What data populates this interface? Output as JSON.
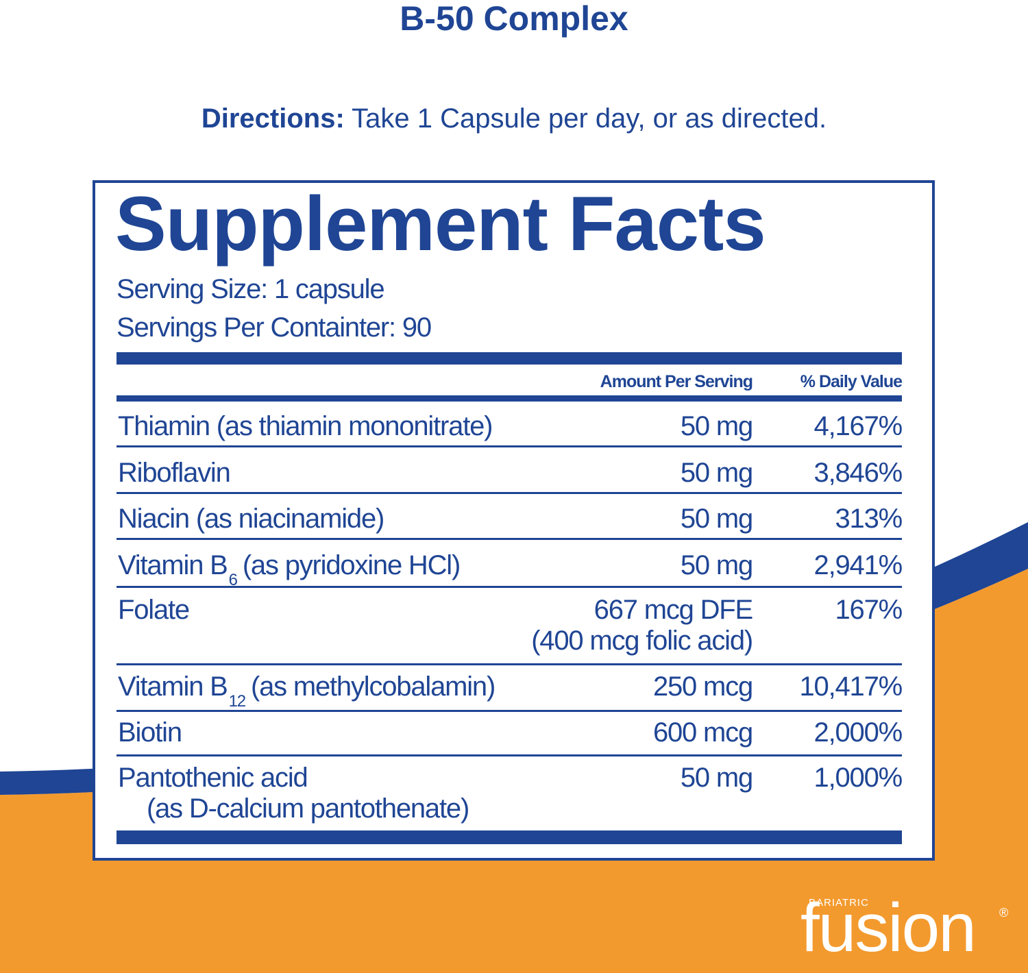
{
  "header": {
    "title": "B-50 Complex",
    "directions_label": "Directions:",
    "directions_text": "Take 1 Capsule per day, or as directed."
  },
  "facts": {
    "title": "Supplement Facts",
    "serving_size": "Serving Size: 1 capsule",
    "servings_per_container": "Servings Per Containter: 90",
    "columns": {
      "amount": "Amount Per Serving",
      "daily_value": "% Daily Value"
    },
    "rows": [
      {
        "name": "Thiamin (as thiamin mononitrate)",
        "amount": "50 mg",
        "daily_value": "4,167%"
      },
      {
        "name": "Riboflavin",
        "amount": "50 mg",
        "daily_value": "3,846%"
      },
      {
        "name": "Niacin (as niacinamide)",
        "amount": "50 mg",
        "daily_value": "313%"
      },
      {
        "name": "Vitamin B",
        "sub": "6",
        "name_rest": "(as pyridoxine HCl)",
        "amount": "50 mg",
        "daily_value": "2,941%"
      },
      {
        "name": "Folate",
        "amount": "667 mcg DFE",
        "amount_note": "(400 mcg folic acid)",
        "daily_value": "167%"
      },
      {
        "name": "Vitamin B",
        "sub": "12",
        "name_rest": "(as methylcobalamin)",
        "amount": "250 mcg",
        "daily_value": "10,417%"
      },
      {
        "name": "Biotin",
        "amount": "600 mcg",
        "daily_value": "2,000%"
      },
      {
        "name": "Pantothenic acid",
        "name_note": "(as D-calcium pantothenate)",
        "amount": "50 mg",
        "daily_value": "1,000%"
      }
    ]
  },
  "logo": {
    "small": "BARIATRIC",
    "name": "fusion",
    "mark": "®"
  }
}
